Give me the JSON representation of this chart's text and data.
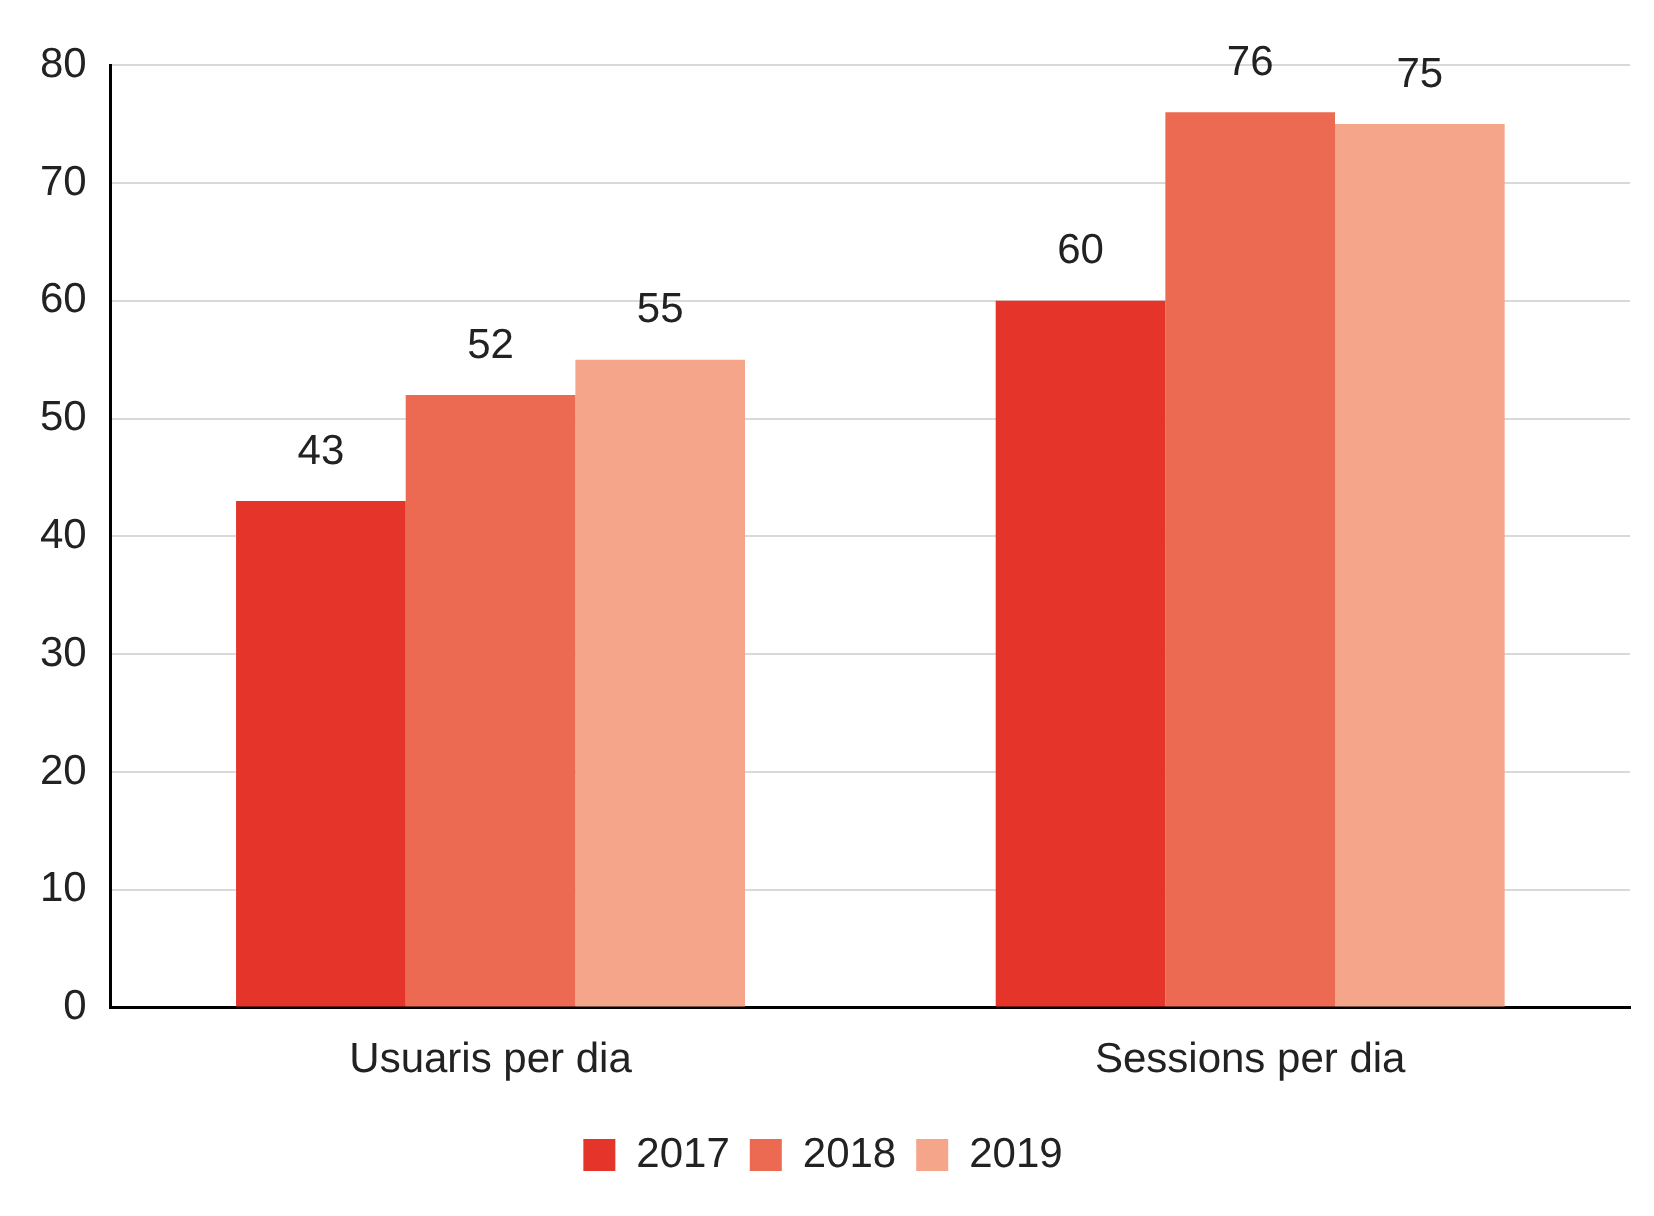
{
  "chart_data": {
    "type": "bar",
    "categories": [
      "Usuaris per dia",
      "Sessions per dia"
    ],
    "series": [
      {
        "name": "2017",
        "color": "#e5352b",
        "values": [
          43,
          60
        ]
      },
      {
        "name": "2018",
        "color": "#ec6a52",
        "values": [
          52,
          76
        ]
      },
      {
        "name": "2019",
        "color": "#f4a58a",
        "values": [
          55,
          75
        ]
      }
    ],
    "ylim": [
      0,
      80
    ],
    "yticks": [
      0,
      10,
      20,
      30,
      40,
      50,
      60,
      70,
      80
    ],
    "grid": "y",
    "legend": "bottom",
    "data_labels": true
  }
}
